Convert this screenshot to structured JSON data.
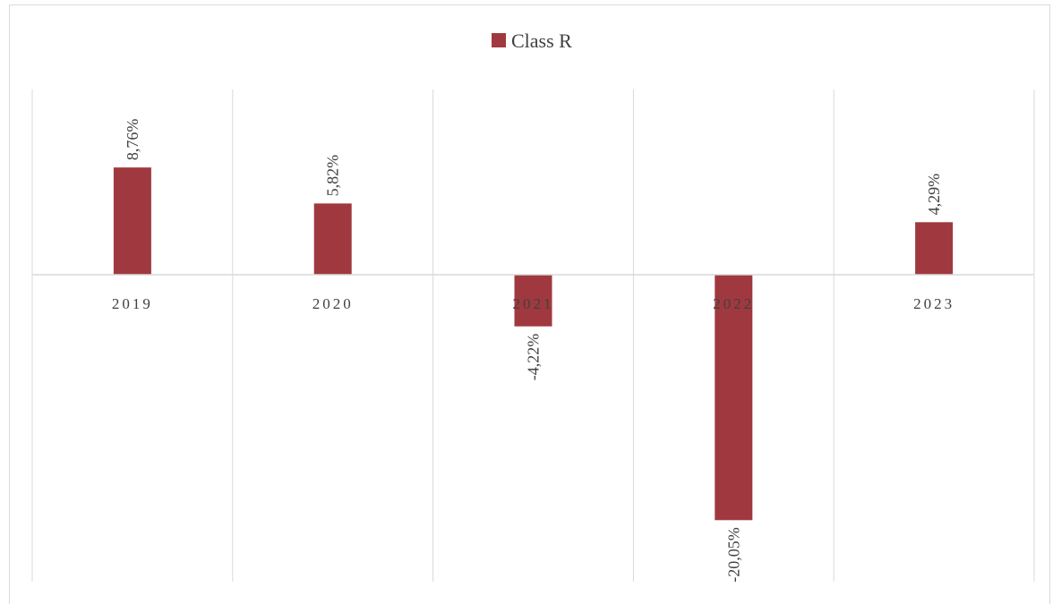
{
  "chart_data": {
    "type": "bar",
    "categories": [
      "2019",
      "2020",
      "2021",
      "2022",
      "2023"
    ],
    "series": [
      {
        "name": "Class R",
        "values": [
          8.76,
          5.82,
          -4.22,
          -20.05,
          4.29
        ],
        "labels": [
          "8,76%",
          "5,82%",
          "-4,22%",
          "-20,05%",
          "4,29%"
        ],
        "color": "#a0393f"
      }
    ],
    "legend": {
      "position": "top",
      "items": [
        "Class R"
      ]
    },
    "ylim": [
      -25,
      15
    ],
    "grid": {
      "vertical": true,
      "horizontal": false
    },
    "colors": {
      "bar": "#a0393f",
      "grid": "#d9d9d9",
      "text": "#404040"
    }
  }
}
